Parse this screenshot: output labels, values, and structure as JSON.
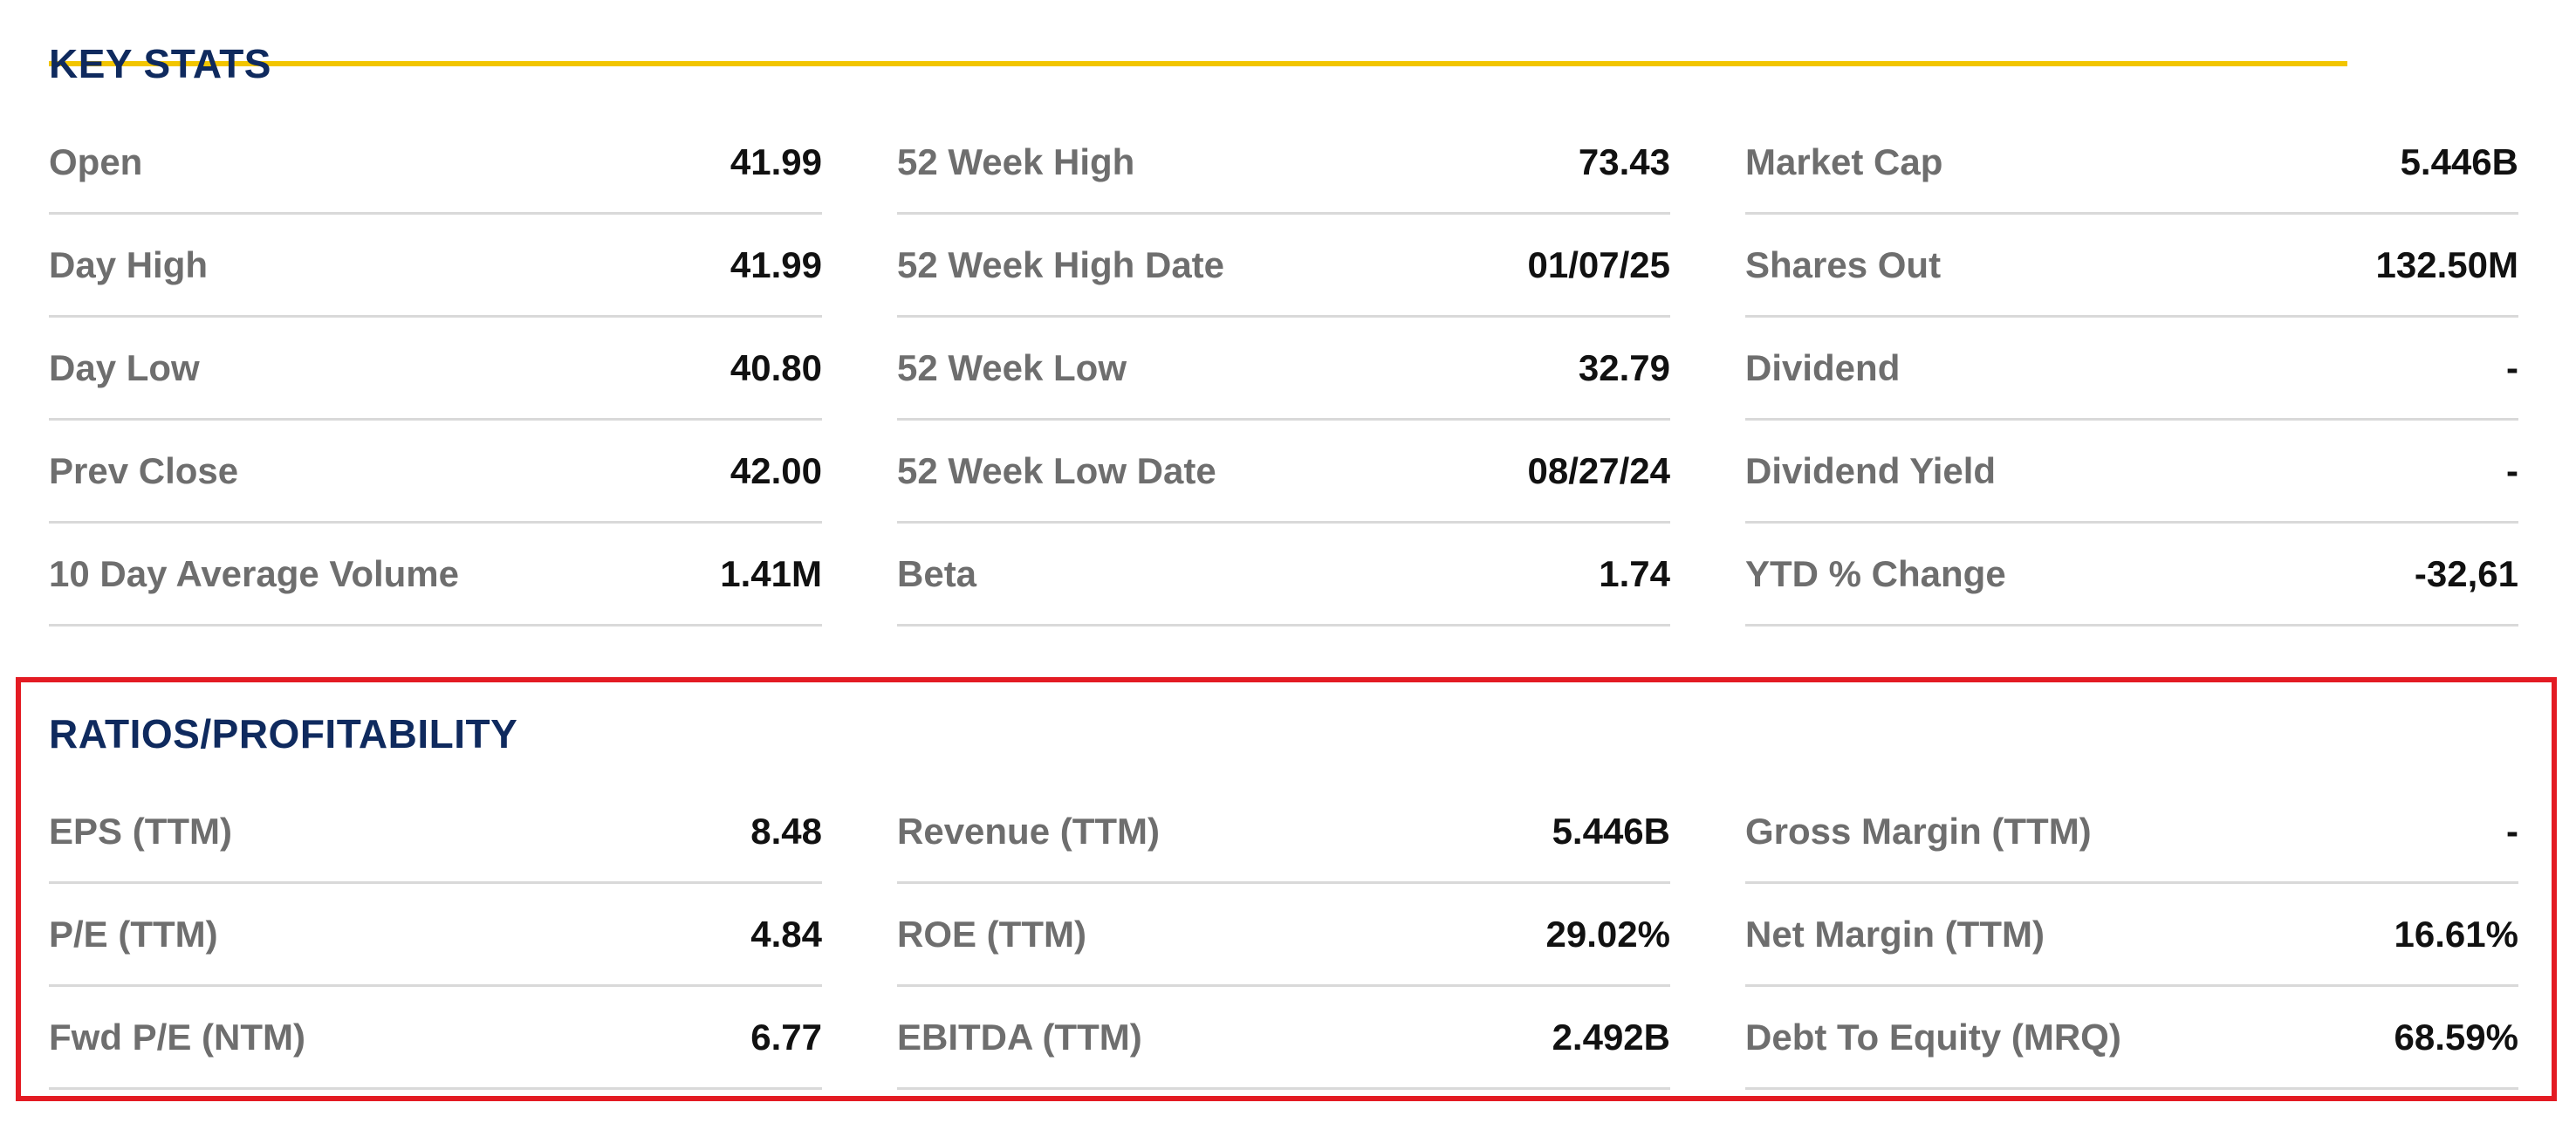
{
  "key_stats": {
    "title": "KEY STATS",
    "columns": [
      [
        {
          "label": "Open",
          "value": "41.99"
        },
        {
          "label": "Day High",
          "value": "41.99"
        },
        {
          "label": "Day Low",
          "value": "40.80"
        },
        {
          "label": "Prev Close",
          "value": "42.00"
        },
        {
          "label": "10 Day Average Volume",
          "value": "1.41M"
        }
      ],
      [
        {
          "label": "52 Week High",
          "value": "73.43"
        },
        {
          "label": "52 Week High Date",
          "value": "01/07/25"
        },
        {
          "label": "52 Week Low",
          "value": "32.79"
        },
        {
          "label": "52 Week Low Date",
          "value": "08/27/24"
        },
        {
          "label": "Beta",
          "value": "1.74"
        }
      ],
      [
        {
          "label": "Market Cap",
          "value": "5.446B"
        },
        {
          "label": "Shares Out",
          "value": "132.50M"
        },
        {
          "label": "Dividend",
          "value": "-"
        },
        {
          "label": "Dividend Yield",
          "value": "-"
        },
        {
          "label": "YTD % Change",
          "value": "-32,61"
        }
      ]
    ]
  },
  "ratios": {
    "title": "RATIOS/PROFITABILITY",
    "columns": [
      [
        {
          "label": "EPS (TTM)",
          "value": "8.48"
        },
        {
          "label": "P/E (TTM)",
          "value": "4.84"
        },
        {
          "label": "Fwd P/E (NTM)",
          "value": "6.77"
        }
      ],
      [
        {
          "label": "Revenue (TTM)",
          "value": "5.446B"
        },
        {
          "label": "ROE (TTM)",
          "value": "29.02%"
        },
        {
          "label": "EBITDA (TTM)",
          "value": "2.492B"
        }
      ],
      [
        {
          "label": "Gross Margin (TTM)",
          "value": "-"
        },
        {
          "label": "Net Margin (TTM)",
          "value": "16.61%"
        },
        {
          "label": "Debt To Equity (MRQ)",
          "value": "68.59%"
        }
      ]
    ]
  },
  "colors": {
    "title": "#0f2a5e",
    "accent_underline": "#f2c500",
    "highlight_border": "#e31b23",
    "label": "#6e6e6e",
    "value": "#111111",
    "divider": "#d9d9d9"
  }
}
